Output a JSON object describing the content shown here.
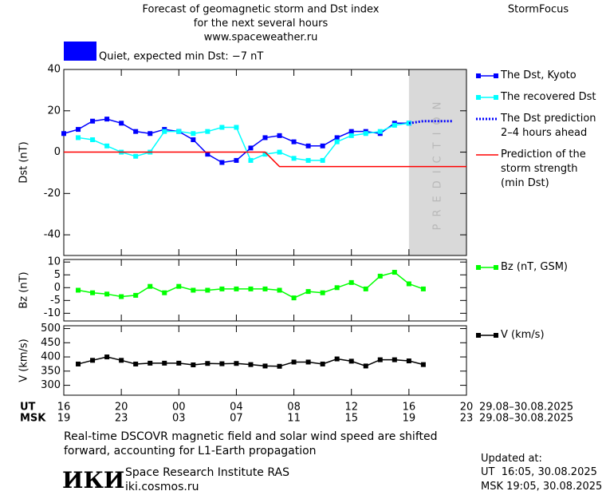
{
  "header": {
    "title": [
      "Forecast of geomagnetic storm and Dst index",
      "for the next several hours",
      "www.spaceweather.ru"
    ],
    "brand": "StormFocus",
    "status": "Quiet, expected min Dst: −7 nT",
    "status_color": "#0000ff"
  },
  "chart_data": [
    {
      "type": "line",
      "ylabel": "Dst (nT)",
      "xlim": [
        16,
        44
      ],
      "ylim": [
        -50,
        40
      ],
      "yticks": [
        -40,
        -20,
        0,
        20,
        40
      ],
      "shaded_region": {
        "label": "PREDICTION",
        "x": [
          40,
          44
        ],
        "color": "#d9d9d9"
      },
      "series": [
        {
          "name": "The Dst, Kyoto",
          "color": "#0000ff",
          "marker": "square",
          "x": [
            16,
            17,
            18,
            19,
            20,
            21,
            22,
            23,
            24,
            25,
            26,
            27,
            28,
            29,
            30,
            31,
            32,
            33,
            34,
            35,
            36,
            37,
            38,
            39,
            40
          ],
          "values": [
            9,
            11,
            15,
            16,
            14,
            10,
            9,
            11,
            10,
            6,
            -1,
            -5,
            -4,
            2,
            7,
            8,
            5,
            3,
            3,
            7,
            10,
            10,
            9,
            14,
            14
          ]
        },
        {
          "name": "The recovered Dst",
          "color": "#00ffff",
          "marker": "square",
          "x": [
            17,
            18,
            19,
            20,
            21,
            22,
            23,
            24,
            25,
            26,
            27,
            28,
            29,
            30,
            31,
            32,
            33,
            34,
            35,
            36,
            37,
            38,
            39,
            40
          ],
          "values": [
            7,
            6,
            3,
            0,
            -2,
            0,
            10,
            10,
            9,
            10,
            12,
            12,
            -4,
            -1,
            0,
            -3,
            -4,
            -4,
            5,
            8,
            9,
            10,
            13,
            14
          ]
        },
        {
          "name": "The Dst prediction\n2–4 hours ahead",
          "color": "#0000ff",
          "dash": true,
          "x": [
            40,
            41,
            42,
            43
          ],
          "values": [
            14,
            15,
            15,
            15
          ]
        },
        {
          "name": "Prediction of the\nstorm strength\n(min Dst)",
          "color": "#ff0000",
          "x": [
            16,
            30,
            31,
            44
          ],
          "values": [
            0,
            0,
            -7,
            -7
          ]
        }
      ]
    },
    {
      "type": "line",
      "ylabel": "Bz (nT)",
      "xlim": [
        16,
        44
      ],
      "ylim": [
        -13,
        11
      ],
      "yticks": [
        -10,
        -5,
        0,
        5,
        10
      ],
      "series": [
        {
          "name": "Bz (nT, GSM)",
          "color": "#00ff00",
          "marker": "square",
          "x": [
            17,
            18,
            19,
            20,
            21,
            22,
            23,
            24,
            25,
            26,
            27,
            28,
            29,
            30,
            31,
            32,
            33,
            34,
            35,
            36,
            37,
            38,
            39,
            40,
            41
          ],
          "values": [
            -1,
            -2,
            -2.5,
            -3.5,
            -3,
            0.5,
            -2,
            0.5,
            -1,
            -1,
            -0.5,
            -0.5,
            -0.5,
            -0.5,
            -1,
            -4,
            -1.5,
            -2,
            0,
            2,
            -0.5,
            4.5,
            6,
            1.5,
            -0.5
          ]
        }
      ]
    },
    {
      "type": "line",
      "ylabel": "V (km/s)",
      "xlim": [
        16,
        44
      ],
      "ylim": [
        265,
        510
      ],
      "yticks": [
        300,
        350,
        400,
        450,
        500
      ],
      "xticks": [
        16,
        20,
        {
          "value": 24,
          "label": "00"
        },
        {
          "value": 28,
          "label": "04"
        },
        {
          "value": 32,
          "label": "08"
        },
        {
          "value": 36,
          "label": "12"
        },
        {
          "value": 40,
          "label": "16"
        },
        {
          "value": 44,
          "label": "20"
        }
      ],
      "msk_ticks": [
        "19",
        "23",
        "03",
        "07",
        "11",
        "15",
        "19",
        "23"
      ],
      "ut_label": "UT",
      "msk_label": "MSK",
      "ut_dates": "29.08–30.08.2025",
      "msk_dates": "29.08–30.08.2025",
      "series": [
        {
          "name": "V (km/s)",
          "color": "#000000",
          "marker": "square",
          "x": [
            17,
            18,
            19,
            20,
            21,
            22,
            23,
            24,
            25,
            26,
            27,
            28,
            29,
            30,
            31,
            32,
            33,
            34,
            35,
            36,
            37,
            38,
            39,
            40,
            41
          ],
          "values": [
            375,
            388,
            400,
            388,
            375,
            378,
            378,
            378,
            372,
            377,
            376,
            377,
            373,
            368,
            367,
            382,
            382,
            375,
            393,
            385,
            368,
            390,
            390,
            386,
            373
          ]
        }
      ]
    }
  ],
  "footer": {
    "note": "Real-time DSCOVR magnetic field and solar wind speed are shifted\nforward, accounting for L1-Earth propagation",
    "logo": "ИКИ",
    "institute": "Space Research Institute RAS",
    "site": "iki.cosmos.ru",
    "updated_label": "Updated at:",
    "updated_ut": "UT  16:05, 30.08.2025",
    "updated_msk": "MSK 19:05, 30.08.2025"
  }
}
